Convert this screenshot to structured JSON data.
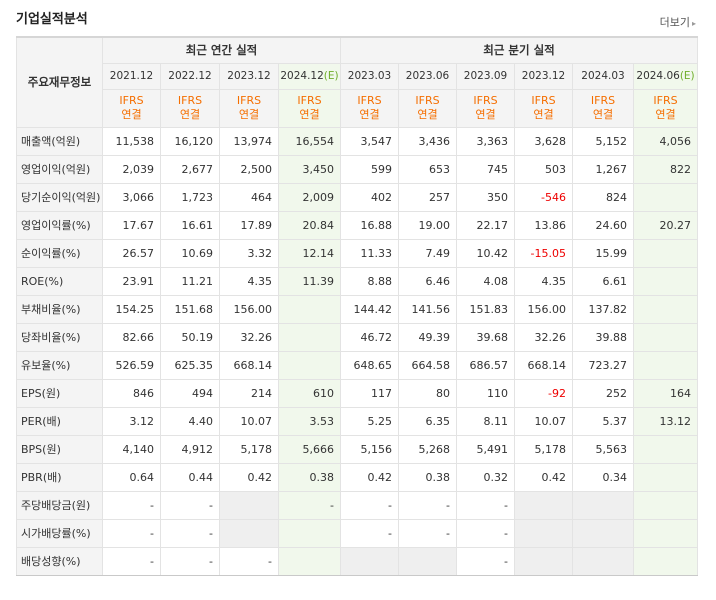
{
  "header": {
    "title": "기업실적분석",
    "more_label": "더보기",
    "more_arrow": "▸"
  },
  "table": {
    "corner_label": "주요재무정보",
    "group_annual": "최근 연간 실적",
    "group_quarter": "최근 분기 실적",
    "annual_periods": [
      "2021.12",
      "2022.12",
      "2023.12",
      "2024.12"
    ],
    "annual_est_mark": "(E)",
    "quarter_periods": [
      "2023.03",
      "2023.06",
      "2023.09",
      "2023.12",
      "2024.03",
      "2024.06"
    ],
    "quarter_est_mark": "(E)",
    "ifrs_top": "IFRS",
    "ifrs_bottom": "연결",
    "rows": [
      {
        "label": "매출액(억원)",
        "values": [
          "11,538",
          "16,120",
          "13,974",
          "16,554",
          "3,547",
          "3,436",
          "3,363",
          "3,628",
          "5,152",
          "4,056"
        ]
      },
      {
        "label": "영업이익(억원)",
        "values": [
          "2,039",
          "2,677",
          "2,500",
          "3,450",
          "599",
          "653",
          "745",
          "503",
          "1,267",
          "822"
        ]
      },
      {
        "label": "당기순이익(억원)",
        "values": [
          "3,066",
          "1,723",
          "464",
          "2,009",
          "402",
          "257",
          "350",
          "-546",
          "824",
          ""
        ]
      },
      {
        "label": "영업이익률(%)",
        "values": [
          "17.67",
          "16.61",
          "17.89",
          "20.84",
          "16.88",
          "19.00",
          "22.17",
          "13.86",
          "24.60",
          "20.27"
        ]
      },
      {
        "label": "순이익률(%)",
        "values": [
          "26.57",
          "10.69",
          "3.32",
          "12.14",
          "11.33",
          "7.49",
          "10.42",
          "-15.05",
          "15.99",
          ""
        ]
      },
      {
        "label": "ROE(%)",
        "values": [
          "23.91",
          "11.21",
          "4.35",
          "11.39",
          "8.88",
          "6.46",
          "4.08",
          "4.35",
          "6.61",
          ""
        ]
      },
      {
        "label": "부채비율(%)",
        "values": [
          "154.25",
          "151.68",
          "156.00",
          "",
          "144.42",
          "141.56",
          "151.83",
          "156.00",
          "137.82",
          ""
        ]
      },
      {
        "label": "당좌비율(%)",
        "values": [
          "82.66",
          "50.19",
          "32.26",
          "",
          "46.72",
          "49.39",
          "39.68",
          "32.26",
          "39.88",
          ""
        ]
      },
      {
        "label": "유보율(%)",
        "values": [
          "526.59",
          "625.35",
          "668.14",
          "",
          "648.65",
          "664.58",
          "686.57",
          "668.14",
          "723.27",
          ""
        ]
      },
      {
        "label": "EPS(원)",
        "values": [
          "846",
          "494",
          "214",
          "610",
          "117",
          "80",
          "110",
          "-92",
          "252",
          "164"
        ]
      },
      {
        "label": "PER(배)",
        "values": [
          "3.12",
          "4.40",
          "10.07",
          "3.53",
          "5.25",
          "6.35",
          "8.11",
          "10.07",
          "5.37",
          "13.12"
        ]
      },
      {
        "label": "BPS(원)",
        "values": [
          "4,140",
          "4,912",
          "5,178",
          "5,666",
          "5,156",
          "5,268",
          "5,491",
          "5,178",
          "5,563",
          ""
        ]
      },
      {
        "label": "PBR(배)",
        "values": [
          "0.64",
          "0.44",
          "0.42",
          "0.38",
          "0.42",
          "0.38",
          "0.32",
          "0.42",
          "0.34",
          ""
        ]
      },
      {
        "label": "주당배당금(원)",
        "values": [
          "-",
          "-",
          "",
          "-",
          "-",
          "-",
          "-",
          "",
          "",
          ""
        ]
      },
      {
        "label": "시가배당률(%)",
        "values": [
          "-",
          "-",
          "",
          "",
          "-",
          "-",
          "-",
          "",
          "",
          ""
        ]
      },
      {
        "label": "배당성향(%)",
        "values": [
          "-",
          "-",
          "-",
          "",
          "",
          "",
          "-",
          "",
          "",
          ""
        ]
      }
    ],
    "gray_cells": {
      "13": [
        2,
        7,
        8
      ],
      "14": [
        2,
        7,
        8
      ],
      "15": [
        4,
        5,
        7,
        8
      ]
    },
    "section_breaks": [
      3,
      6,
      9,
      13
    ],
    "colors": {
      "ifrs": "#f56e00",
      "estimate_bg": "#f1f8ec",
      "negative": "#e00000",
      "estimate_mark": "#6fae2c"
    }
  }
}
